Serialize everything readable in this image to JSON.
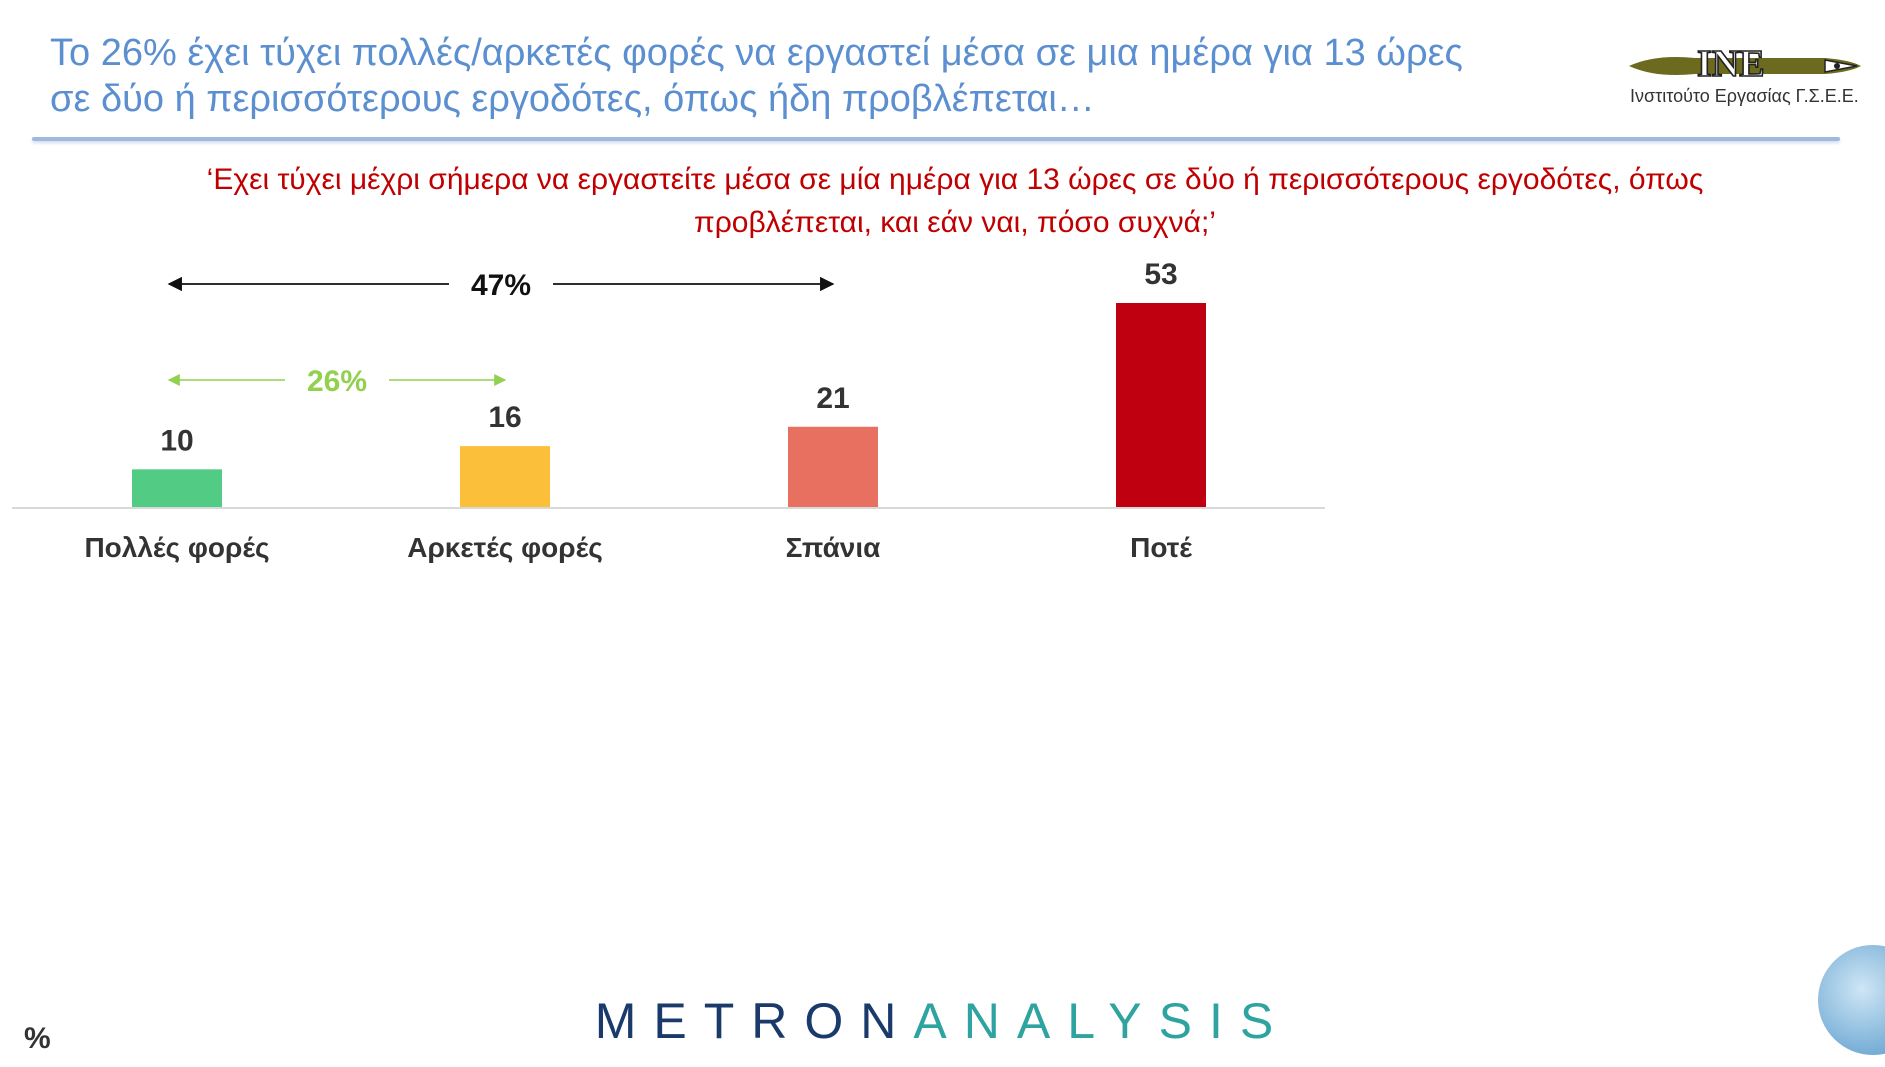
{
  "header": {
    "title_line1": "Το 26% έχει τύχει πολλές/αρκετές φορές να εργαστεί μέσα σε μια ημέρα για 13 ώρες",
    "title_line2": "σε δύο ή περισσότερους εργοδότες, όπως ήδη προβλέπεται…",
    "logo_text": "INE",
    "logo_caption": "Ινστιτούτο Εργασίας Γ.Σ.Ε.Ε."
  },
  "question": {
    "line1": "‘Εχει τύχει μέχρι σήμερα να εργαστείτε μέσα σε μία ημέρα για 13 ώρες σε δύο ή περισσότερους εργοδότες, όπως",
    "line2": "προβλέπεται, και εάν ναι, πόσο συχνά;’"
  },
  "chart_data": {
    "type": "bar",
    "categories": [
      "Πολλές φορές",
      "Αρκετές φορές",
      "Σπάνια",
      "Ποτέ"
    ],
    "values": [
      10,
      16,
      21,
      53
    ],
    "colors": [
      "#52cc84",
      "#fbbf3a",
      "#e87060",
      "#bf0010"
    ],
    "ylim": [
      0,
      53
    ],
    "grid": false,
    "annotations": [
      {
        "label": "47%",
        "from_category": "Πολλές φορές",
        "to_category": "Σπάνια",
        "color": "#111111"
      },
      {
        "label": "26%",
        "from_category": "Πολλές φορές",
        "to_category": "Αρκετές φορές",
        "color": "#92d050"
      }
    ]
  },
  "footer": {
    "brand_part1": "METRON",
    "brand_part2": "ANALYSIS",
    "unit": "%"
  }
}
